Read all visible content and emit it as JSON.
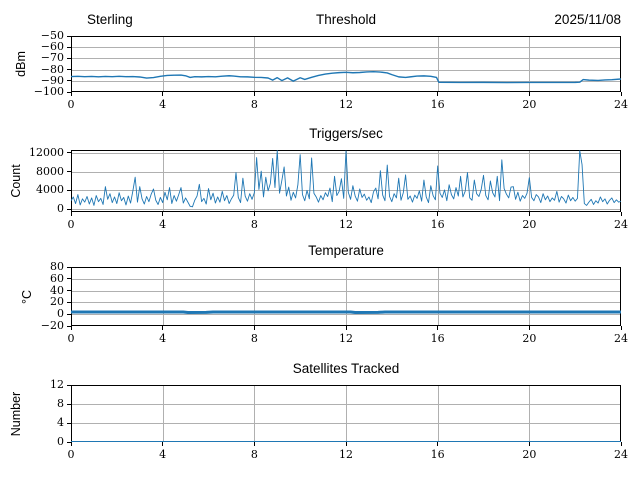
{
  "figure": {
    "background": "#ffffff",
    "line_color": "#1f77b4",
    "grid_color": "#b0b0b0",
    "spine_color": "#000000",
    "tick_color": "#000000"
  },
  "chart_data": [
    {
      "type": "line",
      "title": "Threshold",
      "title_left": "Sterling",
      "title_right": "2025/11/08",
      "ylabel": "dBm",
      "xlim": [
        0,
        24
      ],
      "ylim": [
        -100,
        -50
      ],
      "xticks": [
        0,
        4,
        8,
        12,
        16,
        20,
        24
      ],
      "yticks": [
        -50,
        -60,
        -70,
        -80,
        -90,
        -100
      ],
      "grid": true,
      "legend": "none",
      "line_width": 1.4,
      "points": [
        [
          0,
          -86.2
        ],
        [
          0.3,
          -86.0
        ],
        [
          0.6,
          -86.3
        ],
        [
          0.9,
          -86.1
        ],
        [
          1.2,
          -86.4
        ],
        [
          1.5,
          -86.1
        ],
        [
          1.8,
          -86.3
        ],
        [
          2.1,
          -86.0
        ],
        [
          2.4,
          -86.3
        ],
        [
          2.7,
          -86.2
        ],
        [
          3.0,
          -86.6
        ],
        [
          3.3,
          -87.6
        ],
        [
          3.6,
          -87.1
        ],
        [
          3.9,
          -86.0
        ],
        [
          4.2,
          -85.2
        ],
        [
          4.5,
          -85.0
        ],
        [
          4.8,
          -84.9
        ],
        [
          5.0,
          -85.5
        ],
        [
          5.2,
          -87.0
        ],
        [
          5.4,
          -86.3
        ],
        [
          5.7,
          -86.5
        ],
        [
          6.0,
          -86.2
        ],
        [
          6.3,
          -86.4
        ],
        [
          6.6,
          -85.9
        ],
        [
          6.9,
          -85.5
        ],
        [
          7.1,
          -85.8
        ],
        [
          7.4,
          -86.4
        ],
        [
          7.7,
          -86.5
        ],
        [
          8.0,
          -86.9
        ],
        [
          8.3,
          -87.0
        ],
        [
          8.6,
          -87.5
        ],
        [
          8.8,
          -89.4
        ],
        [
          9.0,
          -87.2
        ],
        [
          9.2,
          -89.8
        ],
        [
          9.45,
          -87.4
        ],
        [
          9.7,
          -90.3
        ],
        [
          10.0,
          -87.3
        ],
        [
          10.2,
          -88.8
        ],
        [
          10.5,
          -86.9
        ],
        [
          10.8,
          -85.2
        ],
        [
          11.1,
          -84.0
        ],
        [
          11.4,
          -83.2
        ],
        [
          11.7,
          -82.7
        ],
        [
          12.0,
          -82.4
        ],
        [
          12.3,
          -82.8
        ],
        [
          12.6,
          -82.6
        ],
        [
          12.9,
          -82.1
        ],
        [
          13.2,
          -81.9
        ],
        [
          13.5,
          -82.2
        ],
        [
          13.8,
          -83.0
        ],
        [
          14.0,
          -84.5
        ],
        [
          14.3,
          -86.5
        ],
        [
          14.6,
          -87.0
        ],
        [
          14.8,
          -86.5
        ],
        [
          15.1,
          -85.8
        ],
        [
          15.4,
          -85.6
        ],
        [
          15.7,
          -86.0
        ],
        [
          15.95,
          -87.0
        ],
        [
          16.05,
          -91.3
        ],
        [
          17,
          -91.5
        ],
        [
          18,
          -91.4
        ],
        [
          19,
          -91.6
        ],
        [
          20,
          -91.5
        ],
        [
          21,
          -91.5
        ],
        [
          22,
          -91.4
        ],
        [
          22.2,
          -91.2
        ],
        [
          22.35,
          -88.9
        ],
        [
          22.6,
          -89.4
        ],
        [
          23.0,
          -89.7
        ],
        [
          23.3,
          -89.2
        ],
        [
          23.6,
          -89.0
        ],
        [
          24,
          -88.4
        ]
      ]
    },
    {
      "type": "line",
      "title": "Triggers/sec",
      "ylabel": "Count",
      "xlim": [
        0,
        24
      ],
      "ylim": [
        -600,
        12600
      ],
      "xticks": [
        0,
        4,
        8,
        12,
        16,
        20,
        24
      ],
      "yticks": [
        0,
        4000,
        8000,
        12000
      ],
      "grid": true,
      "legend": "none",
      "line_width": 0.9,
      "x0": 0,
      "dx": 0.1,
      "values": [
        1800,
        2600,
        1200,
        3100,
        900,
        2200,
        1500,
        2700,
        1100,
        2400,
        800,
        2900,
        1600,
        2300,
        1000,
        4800,
        2100,
        3300,
        1400,
        2600,
        1200,
        3500,
        1800,
        2500,
        900,
        2800,
        1300,
        3900,
        6800,
        1500,
        4800,
        2200,
        1100,
        2700,
        1600,
        3200,
        4300,
        1900,
        1000,
        2500,
        1400,
        3600,
        2000,
        4600,
        1200,
        2900,
        1700,
        3100,
        4600,
        1300,
        2400,
        1500,
        600,
        500,
        1900,
        2800,
        5300,
        1600,
        2300,
        1100,
        4400,
        2000,
        3400,
        1300,
        2600,
        1500,
        3800,
        1800,
        2900,
        1200,
        2200,
        3000,
        7800,
        2500,
        1400,
        6600,
        2800,
        1700,
        3300,
        2100,
        3500,
        11000,
        4200,
        8100,
        2600,
        6800,
        3900,
        5500,
        10800,
        4600,
        12500,
        3400,
        6100,
        9000,
        2800,
        4700,
        1900,
        3600,
        2400,
        5200,
        11600,
        3100,
        1800,
        4000,
        2200,
        10900,
        3400,
        2600,
        1500,
        2900,
        2000,
        3500,
        2700,
        4500,
        1600,
        7000,
        2900,
        3800,
        6500,
        2300,
        12400,
        3600,
        2100,
        5000,
        2800,
        1700,
        4300,
        2500,
        3200,
        1900,
        2600,
        1400,
        3700,
        4500,
        2200,
        8200,
        3000,
        1800,
        9400,
        2700,
        1600,
        3300,
        2400,
        6600,
        1900,
        3500,
        7300,
        2100,
        2800,
        1500,
        3000,
        2300,
        3900,
        1700,
        6200,
        2600,
        1400,
        5000,
        2900,
        2000,
        9200,
        3400,
        2500,
        4100,
        1800,
        5200,
        3100,
        2200,
        4600,
        2800,
        7000,
        2600,
        3800,
        7800,
        2400,
        1900,
        6200,
        3300,
        2700,
        4200,
        7200,
        2900,
        2000,
        6000,
        3500,
        2600,
        7000,
        1800,
        10500,
        4400,
        3200,
        2400,
        4700,
        4800,
        2100,
        3600,
        1700,
        2900,
        2300,
        3400,
        6700,
        2500,
        1800,
        3100,
        2600,
        1400,
        3300,
        2000,
        2800,
        1600,
        2400,
        1900,
        3800,
        1500,
        2700,
        2200,
        1300,
        3000,
        1800,
        2500,
        1700,
        2300,
        12450,
        9500,
        1200,
        800,
        1500,
        2100,
        1000,
        1800,
        1300,
        2600,
        1600,
        2200,
        1100,
        1900,
        2400,
        1400,
        2000,
        1500,
        1700
      ]
    },
    {
      "type": "line",
      "title": "Temperature",
      "ylabel": "°C",
      "xlim": [
        0,
        24
      ],
      "ylim": [
        -20,
        80
      ],
      "xticks": [
        0,
        4,
        8,
        12,
        16,
        20,
        24
      ],
      "yticks": [
        80,
        60,
        40,
        20,
        0,
        -20
      ],
      "grid": true,
      "legend": "none",
      "line_width": 3,
      "points": [
        [
          0,
          3.8
        ],
        [
          4.9,
          3.8
        ],
        [
          5.1,
          2.8
        ],
        [
          5.9,
          3.0
        ],
        [
          6.2,
          3.8
        ],
        [
          12.2,
          3.8
        ],
        [
          12.4,
          2.8
        ],
        [
          13.4,
          3.0
        ],
        [
          13.7,
          3.8
        ],
        [
          24,
          3.8
        ]
      ]
    },
    {
      "type": "line",
      "title": "Satellites Tracked",
      "ylabel": "Number",
      "xlim": [
        0,
        24
      ],
      "ylim": [
        0,
        12
      ],
      "xticks": [
        0,
        4,
        8,
        12,
        16,
        20,
        24
      ],
      "yticks": [
        0,
        4,
        8,
        12
      ],
      "grid": true,
      "legend": "none",
      "line_width": 2,
      "points": [
        [
          0,
          0
        ],
        [
          24,
          0
        ]
      ]
    }
  ]
}
